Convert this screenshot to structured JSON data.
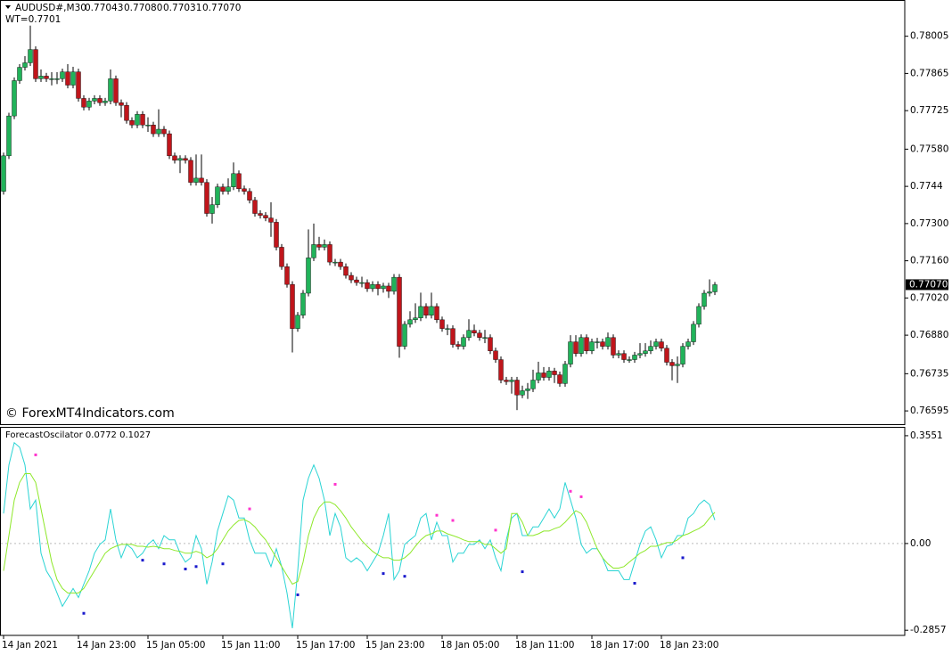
{
  "header": {
    "symbol": "AUDUSD#,M30",
    "quote": [
      "0.77043",
      "0.77080",
      "0.77031",
      "0.77070"
    ],
    "wt": "WT=0.7701"
  },
  "watermark": "© ForexMT4Indicators.com",
  "chart_data": [
    {
      "type": "candlestick",
      "bull_color": "#21b35a",
      "bear_color": "#c0151b",
      "xlim": [
        -0.667,
        168.5
      ],
      "ylim": [
        0.76545,
        0.78138
      ],
      "yticks": [
        0.78005,
        0.77865,
        0.77725,
        {
          "value": 0.7758,
          "label": "0.77580"
        },
        0.7744,
        {
          "value": 0.773,
          "label": "0.77300"
        },
        {
          "value": 0.7716,
          "label": "0.77160"
        },
        {
          "value": 0.7702,
          "label": "0.77020"
        },
        {
          "value": 0.7688,
          "label": "0.76880"
        },
        0.76735,
        0.76595
      ],
      "last_price": {
        "value": 0.7707,
        "label": "0.77070"
      },
      "open": [
        0.77421,
        0.77555,
        0.77705,
        0.77838,
        0.77888,
        0.77905,
        0.77955,
        0.77845,
        0.77855,
        0.77845,
        0.77845,
        0.77845,
        0.77871,
        0.77821,
        0.77871,
        0.77771,
        0.77738,
        0.77761,
        0.77771,
        0.77755,
        0.77761,
        0.77845,
        0.77755,
        0.77745,
        0.77688,
        0.77671,
        0.77711,
        0.77671,
        0.77671,
        0.77638,
        0.77655,
        0.77638,
        0.77555,
        0.77538,
        0.77545,
        0.77538,
        0.77455,
        0.77471,
        0.77455,
        0.77338,
        0.77371,
        0.77438,
        0.77421,
        0.77438,
        0.77488,
        0.77431,
        0.77421,
        0.77388,
        0.77338,
        0.77331,
        0.77321,
        0.77305,
        0.77211,
        0.77138,
        0.77071,
        0.76905,
        0.76955,
        0.77038,
        0.77171,
        0.77221,
        0.77211,
        0.77221,
        0.77155,
        0.77155,
        0.77138,
        0.77105,
        0.77088,
        0.77078,
        0.77078,
        0.77055,
        0.77071,
        0.77055,
        0.77065,
        0.77045,
        0.77098,
        0.76838,
        0.76921,
        0.76938,
        0.76945,
        0.76988,
        0.76955,
        0.76988,
        0.76938,
        0.76905,
        0.76905,
        0.76845,
        0.76838,
        0.76871,
        0.76898,
        0.76888,
        0.76871,
        0.76871,
        0.76821,
        0.76788,
        0.76711,
        0.76705,
        0.76711,
        0.76655,
        0.76671,
        0.76678,
        0.76711,
        0.76738,
        0.76721,
        0.76745,
        0.76731,
        0.76698,
        0.76771,
        0.76855,
        0.76811,
        0.76871,
        0.76821,
        0.76855,
        0.76855,
        0.76838,
        0.76871,
        0.76805,
        0.76811,
        0.76788,
        0.76788,
        0.76805,
        0.76811,
        0.76821,
        0.76838,
        0.76855,
        0.76831,
        0.76778,
        0.76765,
        0.76771,
        0.76838,
        0.76855,
        0.76921,
        0.76988,
        0.77038,
        0.77043
      ],
      "high": [
        0.77567,
        0.77717,
        0.7785,
        0.779,
        0.7793,
        0.78045,
        0.77967,
        0.7788,
        0.77867,
        0.7787,
        0.7787,
        0.77883,
        0.779,
        0.7789,
        0.77883,
        0.77783,
        0.77773,
        0.77783,
        0.77783,
        0.77773,
        0.7788,
        0.77857,
        0.77767,
        0.77757,
        0.777,
        0.77723,
        0.77723,
        0.777,
        0.77683,
        0.7773,
        0.77667,
        0.7765,
        0.77567,
        0.77557,
        0.77557,
        0.7755,
        0.7756,
        0.7756,
        0.77467,
        0.774,
        0.7745,
        0.7745,
        0.7747,
        0.7753,
        0.775,
        0.77443,
        0.77433,
        0.774,
        0.7735,
        0.77343,
        0.7738,
        0.77317,
        0.77223,
        0.7715,
        0.77083,
        0.76967,
        0.7705,
        0.77278,
        0.773,
        0.7725,
        0.7724,
        0.77233,
        0.77167,
        0.77167,
        0.7715,
        0.77117,
        0.771,
        0.771,
        0.7709,
        0.77083,
        0.77083,
        0.77077,
        0.77077,
        0.7711,
        0.7711,
        0.76933,
        0.7697,
        0.77,
        0.7704,
        0.77,
        0.7704,
        0.77,
        0.7695,
        0.7692,
        0.76917,
        0.76857,
        0.76883,
        0.7694,
        0.7692,
        0.769,
        0.769,
        0.76883,
        0.76833,
        0.768,
        0.76723,
        0.76723,
        0.76723,
        0.7669,
        0.767,
        0.7675,
        0.7678,
        0.7676,
        0.7676,
        0.76757,
        0.76743,
        0.76783,
        0.7688,
        0.7688,
        0.76883,
        0.76883,
        0.76867,
        0.7687,
        0.76867,
        0.7689,
        0.76883,
        0.76823,
        0.76823,
        0.768,
        0.76817,
        0.7685,
        0.7685,
        0.7686,
        0.76867,
        0.76867,
        0.76843,
        0.7679,
        0.768,
        0.7685,
        0.76867,
        0.76933,
        0.77,
        0.7705,
        0.7709,
        0.7708
      ],
      "low": [
        0.77409,
        0.77543,
        0.77693,
        0.77826,
        0.77876,
        0.77893,
        0.77833,
        0.77833,
        0.77833,
        0.7782,
        0.77825,
        0.77833,
        0.77809,
        0.77809,
        0.77759,
        0.77726,
        0.77726,
        0.77749,
        0.77743,
        0.77743,
        0.77749,
        0.77743,
        0.777,
        0.77676,
        0.77659,
        0.77659,
        0.77659,
        0.77645,
        0.77626,
        0.77626,
        0.77626,
        0.77543,
        0.77526,
        0.7749,
        0.77526,
        0.77443,
        0.77443,
        0.77443,
        0.77326,
        0.773,
        0.77359,
        0.77409,
        0.77409,
        0.77426,
        0.77419,
        0.77409,
        0.77376,
        0.77326,
        0.77319,
        0.77309,
        0.7725,
        0.77199,
        0.77126,
        0.77059,
        0.76815,
        0.76893,
        0.76943,
        0.77026,
        0.77159,
        0.77199,
        0.77199,
        0.77143,
        0.7714,
        0.77126,
        0.77093,
        0.77076,
        0.77066,
        0.7706,
        0.77043,
        0.77043,
        0.7703,
        0.7704,
        0.7702,
        0.77033,
        0.76795,
        0.76826,
        0.76909,
        0.76926,
        0.76933,
        0.76943,
        0.76943,
        0.76926,
        0.76893,
        0.7688,
        0.76833,
        0.76826,
        0.76826,
        0.76859,
        0.76876,
        0.76859,
        0.7685,
        0.76809,
        0.76776,
        0.76699,
        0.76693,
        0.7666,
        0.76598,
        0.76643,
        0.7664,
        0.76666,
        0.76699,
        0.76709,
        0.76709,
        0.767,
        0.76686,
        0.76686,
        0.76759,
        0.76799,
        0.76799,
        0.76809,
        0.76809,
        0.7683,
        0.76826,
        0.76826,
        0.76793,
        0.76793,
        0.76776,
        0.76776,
        0.76776,
        0.76793,
        0.76799,
        0.76809,
        0.76826,
        0.76819,
        0.76766,
        0.7671,
        0.767,
        0.76759,
        0.76826,
        0.76843,
        0.76909,
        0.76976,
        0.77026,
        0.77031
      ],
      "close": [
        0.77555,
        0.77705,
        0.77838,
        0.77888,
        0.77905,
        0.77955,
        0.77845,
        0.77855,
        0.77845,
        0.77845,
        0.77845,
        0.77871,
        0.77821,
        0.77871,
        0.77771,
        0.77738,
        0.77761,
        0.77771,
        0.77755,
        0.77761,
        0.77845,
        0.77755,
        0.77745,
        0.77688,
        0.77671,
        0.77711,
        0.77671,
        0.77671,
        0.77638,
        0.77655,
        0.77638,
        0.77555,
        0.77538,
        0.77545,
        0.77538,
        0.77455,
        0.77471,
        0.77455,
        0.77338,
        0.77371,
        0.77438,
        0.77421,
        0.77438,
        0.77488,
        0.77431,
        0.77421,
        0.77388,
        0.77338,
        0.77331,
        0.77321,
        0.77305,
        0.77211,
        0.77138,
        0.77071,
        0.76905,
        0.76955,
        0.77038,
        0.77171,
        0.77221,
        0.77211,
        0.77221,
        0.77155,
        0.77155,
        0.77138,
        0.77105,
        0.77088,
        0.77078,
        0.77078,
        0.77055,
        0.77071,
        0.77055,
        0.77065,
        0.77045,
        0.77098,
        0.76838,
        0.76921,
        0.76938,
        0.76945,
        0.76988,
        0.76955,
        0.76988,
        0.76938,
        0.76905,
        0.76905,
        0.76845,
        0.76838,
        0.76871,
        0.76898,
        0.76888,
        0.76871,
        0.76871,
        0.76821,
        0.76788,
        0.76711,
        0.76705,
        0.76711,
        0.76655,
        0.76671,
        0.76678,
        0.76711,
        0.76738,
        0.76721,
        0.76745,
        0.76731,
        0.76698,
        0.76771,
        0.76855,
        0.76811,
        0.76871,
        0.76821,
        0.76855,
        0.76855,
        0.76838,
        0.76871,
        0.76805,
        0.76811,
        0.76788,
        0.76788,
        0.76805,
        0.76811,
        0.76821,
        0.76838,
        0.76855,
        0.76831,
        0.76778,
        0.76765,
        0.76771,
        0.76838,
        0.76855,
        0.76921,
        0.76988,
        0.77038,
        0.77043,
        0.7707
      ]
    },
    {
      "type": "line",
      "title": "ForecastOscilator",
      "xlim": [
        -0.667,
        168.5
      ],
      "ylim": [
        -0.3027,
        0.3813
      ],
      "zero_line": true,
      "yticks": [
        0.3551,
        {
          "value": 0,
          "label": "0.00"
        },
        -0.2857
      ],
      "xticks": [
        {
          "value": 0,
          "label": "14 Jan 2021"
        },
        {
          "value": 14,
          "label": "14 Jan 23:00"
        },
        {
          "value": 27,
          "label": "15 Jan 05:00"
        },
        {
          "value": 41,
          "label": "15 Jan 11:00"
        },
        {
          "value": 55,
          "label": "15 Jan 17:00"
        },
        {
          "value": 68,
          "label": "15 Jan 23:00"
        },
        {
          "value": 82,
          "label": "18 Jan 05:00"
        },
        {
          "value": 96,
          "label": "18 Jan 11:00"
        },
        {
          "value": 110,
          "label": "18 Jan 17:00"
        },
        {
          "value": 123,
          "label": "18 Jan 23:00"
        }
      ],
      "series": [
        {
          "color": "#2ad4d4",
          "values": [
            0.099,
            0.259,
            0.332,
            0.317,
            0.259,
            0.114,
            0.143,
            -0.032,
            -0.09,
            -0.119,
            -0.163,
            -0.207,
            -0.178,
            -0.148,
            -0.178,
            -0.134,
            -0.09,
            -0.032,
            -0.003,
            0.012,
            0.114,
            0.012,
            -0.047,
            -0.003,
            -0.017,
            -0.047,
            -0.032,
            -0.003,
            0.012,
            -0.017,
            0.026,
            0.012,
            0.012,
            -0.032,
            -0.061,
            -0.047,
            0.026,
            -0.017,
            -0.134,
            -0.061,
            0.041,
            0.099,
            0.157,
            0.143,
            0.084,
            0.084,
            0.012,
            -0.032,
            -0.032,
            -0.032,
            -0.076,
            -0.017,
            -0.076,
            -0.163,
            -0.279,
            -0.09,
            0.143,
            0.215,
            0.259,
            0.215,
            0.143,
            0.026,
            0.099,
            0.055,
            -0.047,
            -0.061,
            -0.047,
            -0.061,
            -0.09,
            -0.061,
            -0.032,
            0.026,
            0.099,
            -0.119,
            -0.09,
            -0.003,
            0.012,
            0.026,
            0.084,
            0.099,
            0.012,
            0.07,
            0.026,
            0.026,
            -0.061,
            -0.032,
            -0.032,
            -0.003,
            -0.003,
            0.012,
            -0.017,
            0.012,
            -0.047,
            -0.09,
            0.012,
            0.084,
            0.099,
            0.026,
            0.026,
            0.055,
            0.055,
            0.084,
            0.114,
            0.084,
            0.114,
            0.201,
            0.143,
            0.084,
            -0.003,
            -0.032,
            -0.017,
            -0.017,
            -0.047,
            -0.09,
            -0.09,
            -0.09,
            -0.119,
            -0.119,
            -0.061,
            -0.003,
            0.041,
            0.055,
            0.012,
            -0.047,
            -0.009,
            -0.003,
            0.026,
            0.026,
            0.084,
            0.099,
            0.128,
            0.143,
            0.128,
            0.0772
          ]
        },
        {
          "color": "#8ee82a",
          "values": [
            -0.09,
            0.026,
            0.143,
            0.201,
            0.23,
            0.23,
            0.201,
            0.114,
            0.026,
            -0.061,
            -0.119,
            -0.148,
            -0.163,
            -0.163,
            -0.163,
            -0.148,
            -0.119,
            -0.09,
            -0.061,
            -0.032,
            -0.017,
            -0.009,
            -0.003,
            -0.003,
            -0.003,
            -0.009,
            -0.009,
            -0.012,
            -0.009,
            -0.012,
            -0.017,
            -0.017,
            -0.023,
            -0.026,
            -0.032,
            -0.032,
            -0.026,
            -0.032,
            -0.047,
            -0.038,
            -0.017,
            0.012,
            0.041,
            0.061,
            0.076,
            0.079,
            0.07,
            0.055,
            0.032,
            0.012,
            -0.017,
            -0.047,
            -0.076,
            -0.105,
            -0.134,
            -0.125,
            -0.061,
            0.026,
            0.084,
            0.119,
            0.137,
            0.137,
            0.128,
            0.108,
            0.084,
            0.055,
            0.032,
            0.009,
            -0.009,
            -0.026,
            -0.038,
            -0.047,
            -0.047,
            -0.055,
            -0.055,
            -0.047,
            -0.032,
            -0.009,
            0.012,
            0.026,
            0.032,
            0.041,
            0.041,
            0.032,
            0.026,
            0.02,
            0.012,
            0.006,
            0.006,
            0.006,
            -0.003,
            -0.003,
            -0.017,
            -0.032,
            -0.017,
            0.099,
            0.099,
            0.07,
            0.026,
            0.026,
            0.032,
            0.041,
            0.041,
            0.049,
            0.055,
            0.07,
            0.09,
            0.108,
            0.099,
            0.07,
            0.026,
            -0.017,
            -0.047,
            -0.067,
            -0.081,
            -0.081,
            -0.076,
            -0.061,
            -0.047,
            -0.032,
            -0.023,
            -0.009,
            -0.009,
            -0.003,
            0.003,
            0.003,
            0.012,
            0.026,
            0.032,
            0.041,
            0.049,
            0.061,
            0.084,
            0.1027
          ]
        }
      ],
      "markers": [
        {
          "color": "#ff33cc",
          "x": [
            6,
            46,
            62,
            81,
            84,
            92,
            106,
            108
          ],
          "values": [
            0.292,
            0.114,
            0.195,
            0.093,
            0.076,
            0.044,
            0.172,
            0.154
          ]
        },
        {
          "color": "#1a1acc",
          "x": [
            15,
            26,
            30,
            34,
            36,
            41,
            55,
            71,
            75,
            97,
            118,
            127
          ],
          "values": [
            -0.23,
            -0.055,
            -0.067,
            -0.084,
            -0.076,
            -0.067,
            -0.169,
            -0.099,
            -0.108,
            -0.093,
            -0.131,
            -0.047
          ]
        }
      ]
    }
  ]
}
